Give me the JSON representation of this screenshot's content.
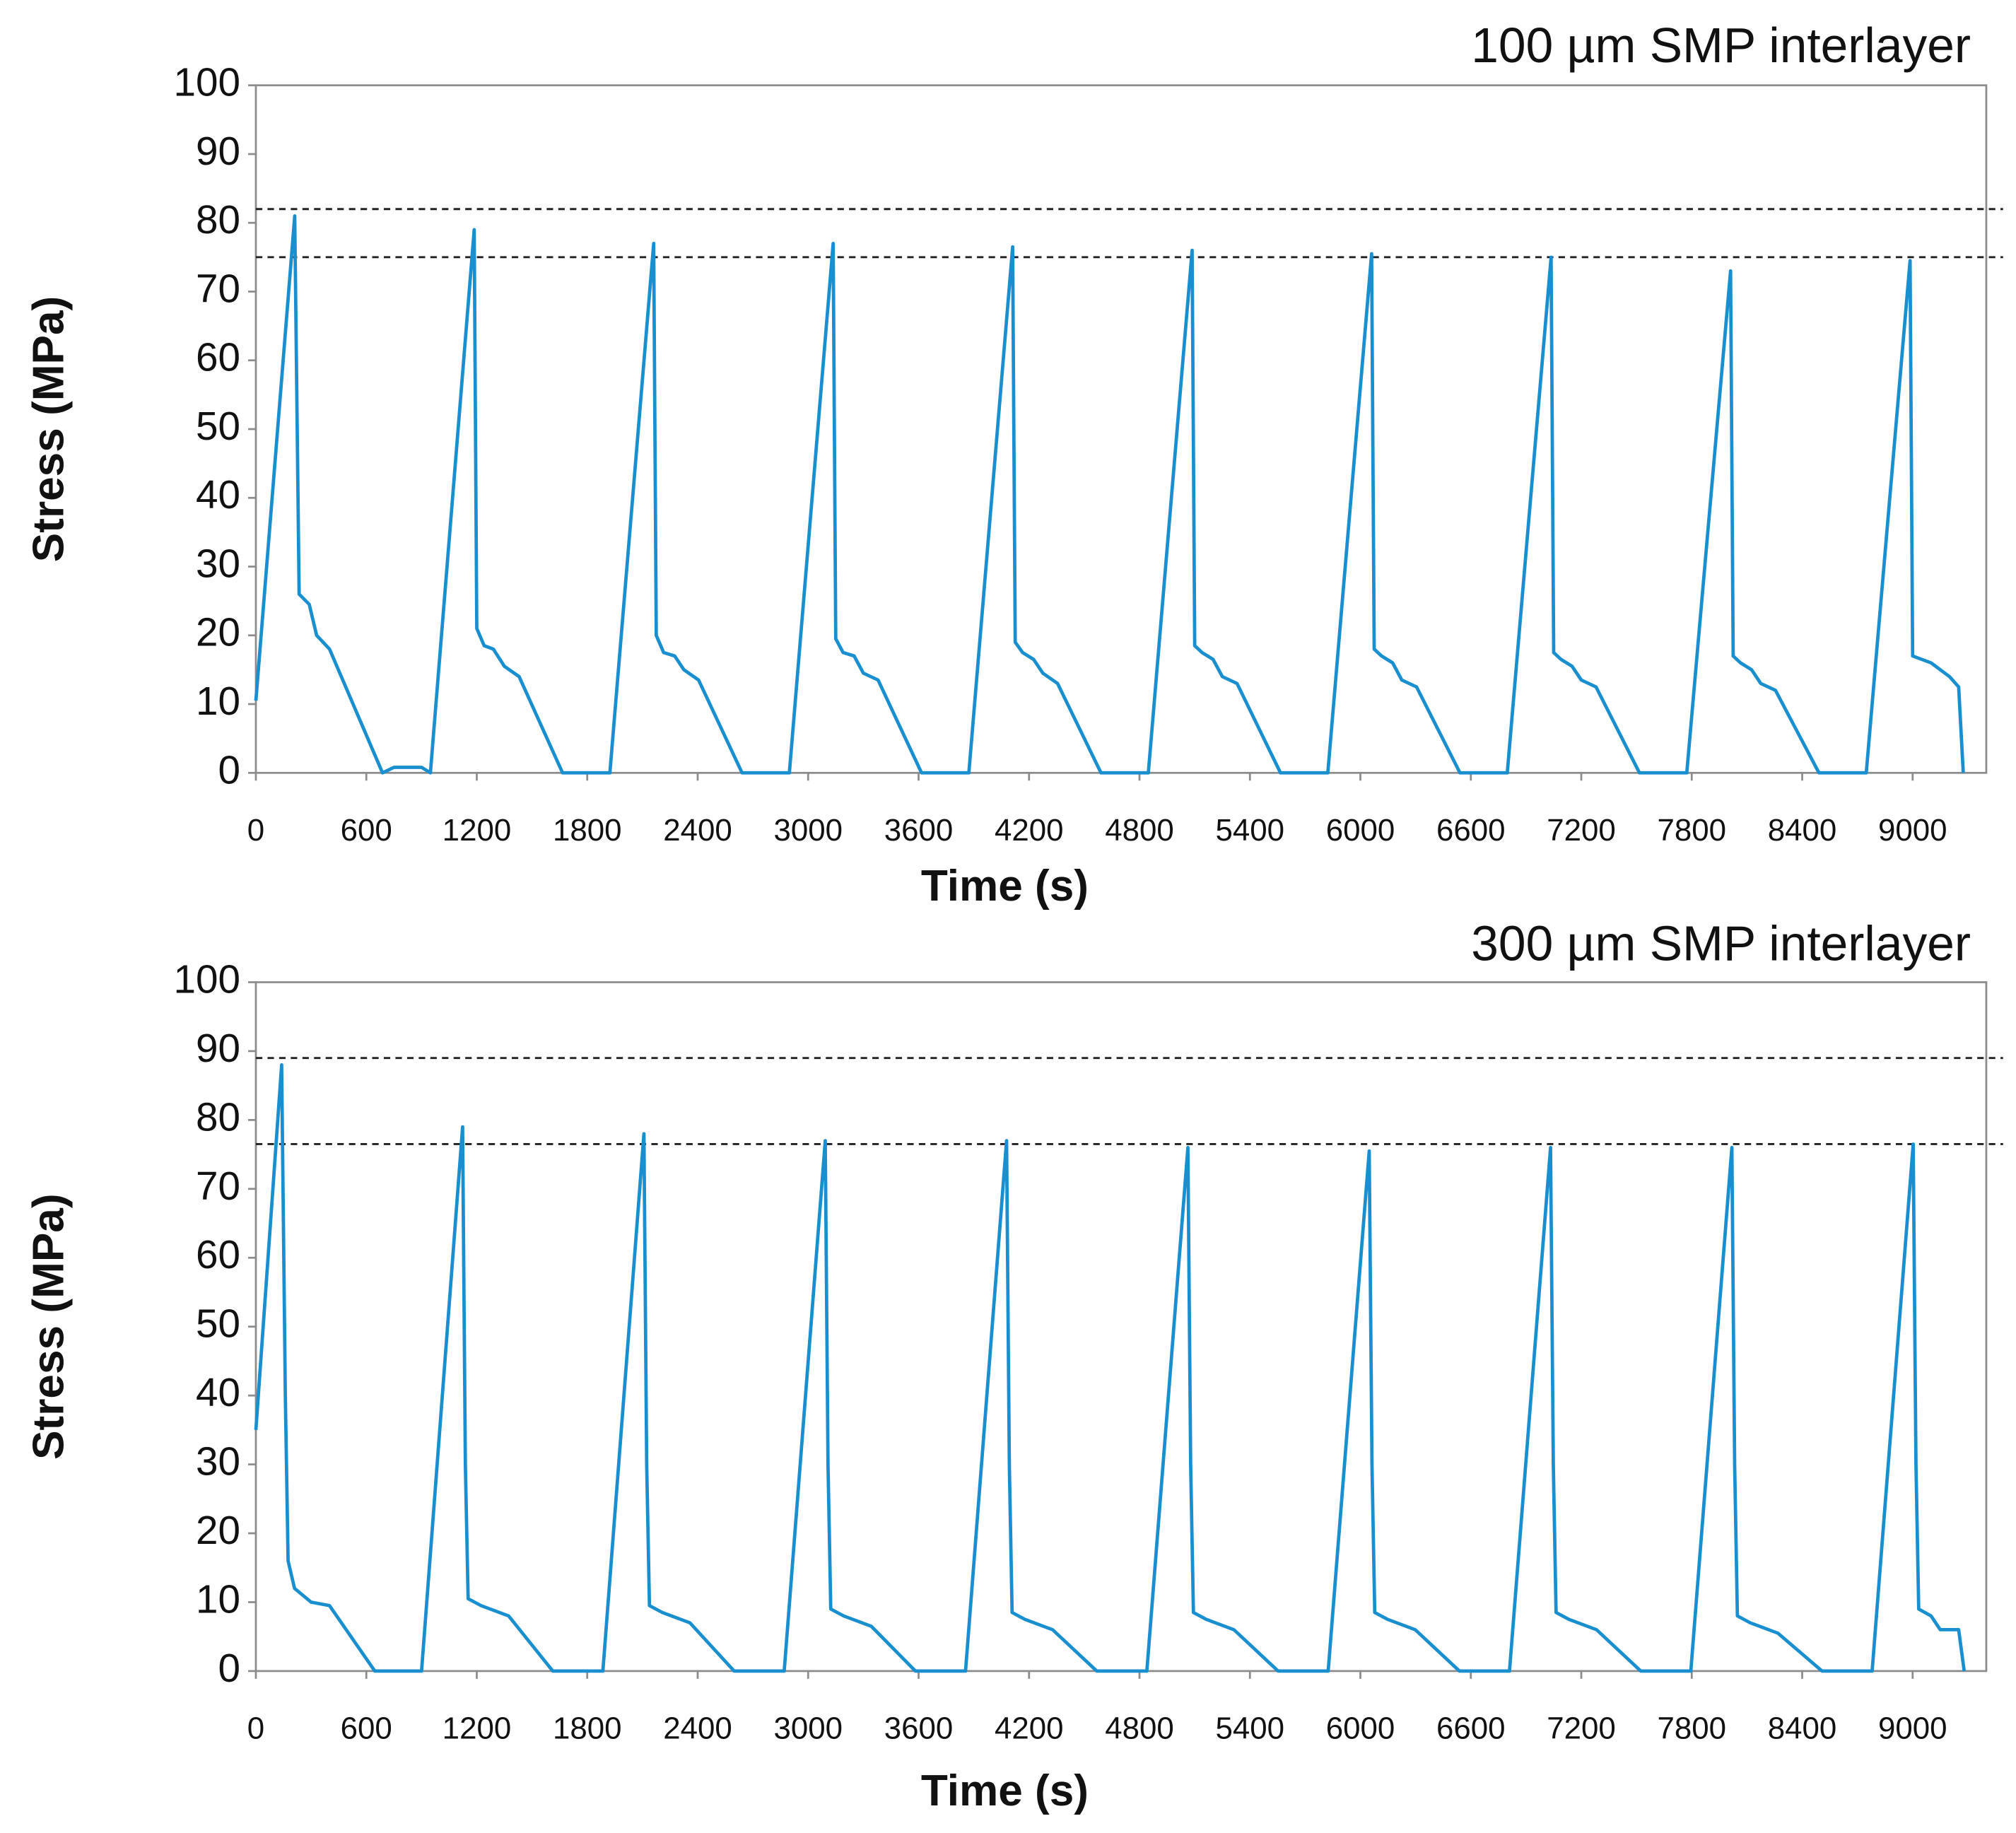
{
  "chart_data": [
    {
      "type": "line",
      "title": "100 µm SMP interlayer",
      "x_label": "Time (s)",
      "y_label": "Stress (MPa)",
      "color": "#1a8fd0",
      "xlim": [
        0,
        9400
      ],
      "ylim": [
        0,
        100
      ],
      "xticks": [
        0,
        600,
        1200,
        1800,
        2400,
        3000,
        3600,
        4200,
        4800,
        5400,
        6000,
        6600,
        7200,
        7800,
        8400,
        9000
      ],
      "yticks": [
        0,
        10,
        20,
        30,
        40,
        50,
        60,
        70,
        80,
        90,
        100
      ],
      "reference_lines": [
        82,
        75
      ],
      "x": [
        0,
        211,
        235,
        290,
        330,
        400,
        688,
        750,
        900,
        948,
        1186,
        1200,
        1240,
        1290,
        1350,
        1430,
        1666,
        1923,
        2161,
        2175,
        2215,
        2275,
        2325,
        2405,
        2641,
        2898,
        3136,
        3150,
        3190,
        3250,
        3300,
        3380,
        3616,
        3873,
        4111,
        4125,
        4165,
        4225,
        4275,
        4355,
        4591,
        4848,
        5086,
        5100,
        5140,
        5200,
        5250,
        5330,
        5566,
        5823,
        6061,
        6075,
        6115,
        6175,
        6225,
        6305,
        6541,
        6798,
        7036,
        7050,
        7090,
        7150,
        7200,
        7280,
        7516,
        7773,
        8011,
        8025,
        8065,
        8125,
        8175,
        8255,
        8491,
        8748,
        8986,
        9000,
        9100,
        9200,
        9250,
        9275
      ],
      "values": [
        10.5,
        81,
        26,
        24.5,
        20,
        18,
        0,
        0.8,
        0.8,
        0,
        79,
        21,
        18.5,
        18,
        15.5,
        14,
        0,
        0,
        77,
        20,
        17.5,
        17,
        15,
        13.5,
        0,
        0,
        77,
        19.5,
        17.5,
        17,
        14.5,
        13.5,
        0,
        0,
        76.5,
        19,
        17.5,
        16.5,
        14.5,
        13,
        0,
        0,
        76,
        18.5,
        17.5,
        16.5,
        14,
        13,
        0,
        0,
        75.5,
        18,
        17,
        16,
        13.5,
        12.5,
        0,
        0,
        75,
        17.5,
        16.5,
        15.5,
        13.5,
        12.5,
        0,
        0,
        73,
        17,
        16,
        15,
        13,
        12,
        0,
        0,
        74.5,
        17,
        16,
        14,
        12.5,
        0
      ]
    },
    {
      "type": "line",
      "title": "300 µm SMP interlayer",
      "x_label": "Time (s)",
      "y_label": "Stress (MPa)",
      "color": "#1a8fd0",
      "xlim": [
        0,
        9400
      ],
      "ylim": [
        0,
        100
      ],
      "xticks": [
        0,
        600,
        1200,
        1800,
        2400,
        3000,
        3600,
        4200,
        4800,
        5400,
        6000,
        6600,
        7200,
        7800,
        8400,
        9000
      ],
      "yticks": [
        0,
        10,
        20,
        30,
        40,
        50,
        60,
        70,
        80,
        90,
        100
      ],
      "reference_lines": [
        89,
        76.5
      ],
      "x": [
        0,
        140,
        160,
        175,
        210,
        300,
        400,
        646,
        900,
        1123,
        1138,
        1153,
        1223,
        1323,
        1373,
        1613,
        1885,
        2108,
        2123,
        2138,
        2208,
        2308,
        2358,
        2598,
        2870,
        3093,
        3108,
        3123,
        3193,
        3293,
        3343,
        3583,
        3855,
        4078,
        4093,
        4108,
        4178,
        4278,
        4328,
        4568,
        4840,
        5063,
        5078,
        5093,
        5163,
        5263,
        5313,
        5553,
        5825,
        6048,
        6063,
        6078,
        6148,
        6248,
        6298,
        6538,
        6810,
        7033,
        7048,
        7063,
        7133,
        7233,
        7283,
        7523,
        7795,
        8018,
        8033,
        8048,
        8118,
        8218,
        8268,
        8508,
        8780,
        9003,
        9018,
        9033,
        9100,
        9150,
        9250,
        9280
      ],
      "values": [
        35,
        88,
        40,
        16,
        12,
        10,
        9.5,
        0,
        0,
        79,
        30,
        10.5,
        9.5,
        8.5,
        8,
        0,
        0,
        78,
        30,
        9.5,
        8.5,
        7.5,
        7,
        0,
        0,
        77,
        30,
        9,
        8,
        7,
        6.5,
        0,
        0,
        77,
        30,
        8.5,
        7.5,
        6.5,
        6,
        0,
        0,
        76,
        30,
        8.5,
        7.5,
        6.5,
        6,
        0,
        0,
        75.5,
        30,
        8.5,
        7.5,
        6.5,
        6,
        0,
        0,
        76,
        30,
        8.5,
        7.5,
        6.5,
        6,
        0,
        0,
        76,
        30,
        8,
        7,
        6,
        5.5,
        0,
        0,
        76.5,
        30,
        9,
        8,
        6,
        6,
        0
      ]
    }
  ]
}
